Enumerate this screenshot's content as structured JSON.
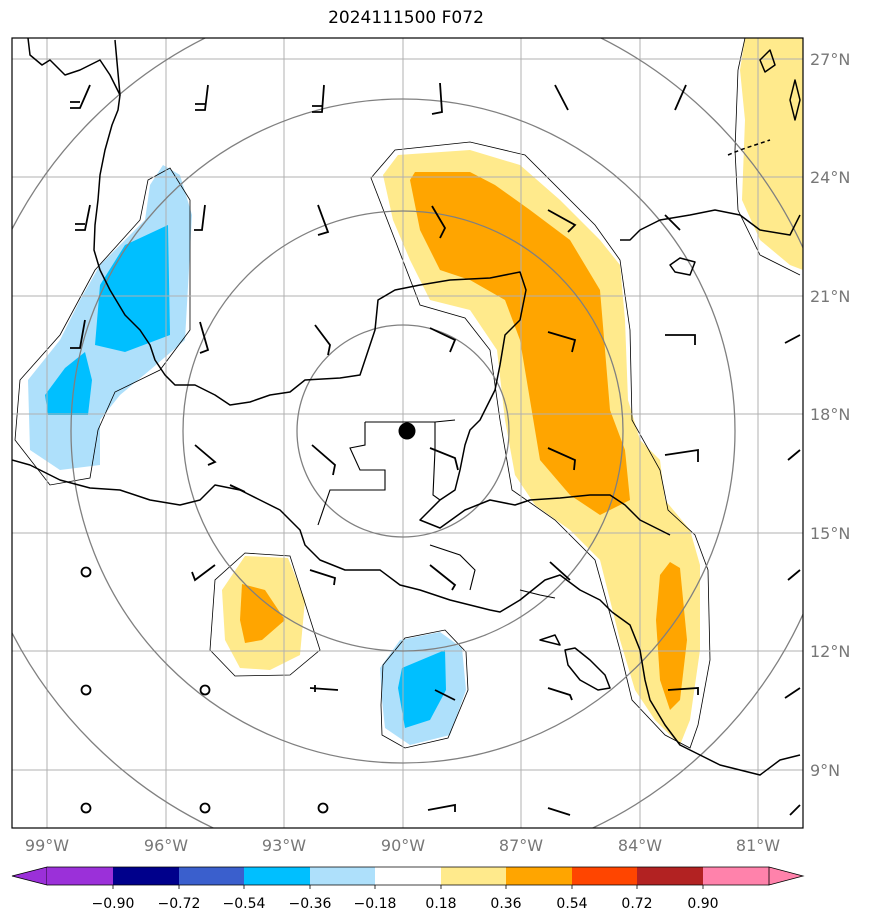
{
  "title": "2024111500 F072",
  "map": {
    "lon_ticks": [
      "99°W",
      "96°W",
      "93°W",
      "90°W",
      "87°W",
      "84°W",
      "81°W"
    ],
    "lat_ticks": [
      "27°N",
      "24°N",
      "21°N",
      "18°N",
      "15°N",
      "12°N",
      "9°N"
    ],
    "center_marker": "storm-center",
    "colors": {
      "neg_light": "#aee0fb",
      "neg_mid": "#00bfff",
      "pos_light": "#ffea8c",
      "pos_mid": "#ffa500",
      "coast": "#000000",
      "grid": "#b0b0b0",
      "range_rings": "#808080"
    }
  },
  "colorbar": {
    "ticks": [
      "−0.90",
      "−0.72",
      "−0.54",
      "−0.36",
      "−0.18",
      "0.18",
      "0.36",
      "0.54",
      "0.72",
      "0.90"
    ],
    "colors": [
      "#9b30d9",
      "#00008b",
      "#3a5fcd",
      "#00bfff",
      "#aee0fb",
      "#ffffff",
      "#ffea8c",
      "#ffa500",
      "#ff4500",
      "#b22222",
      "#ff82ab"
    ]
  }
}
